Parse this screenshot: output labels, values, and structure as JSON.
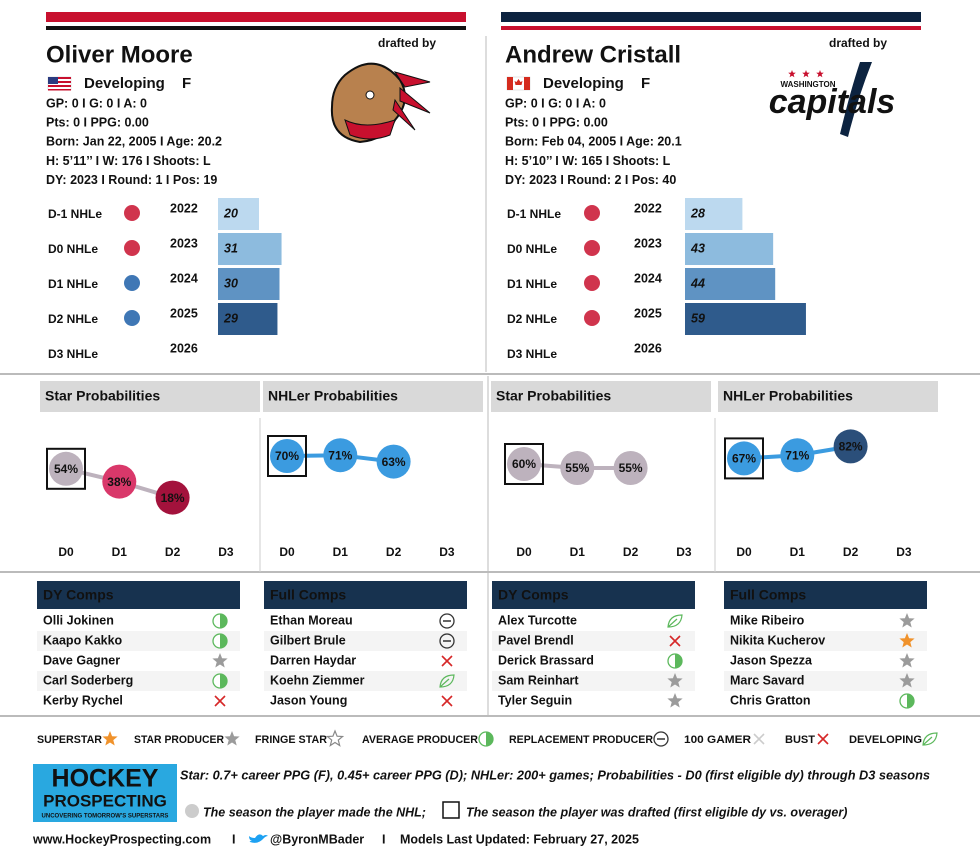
{
  "players": [
    {
      "name": "Oliver Moore",
      "drafted_by": "drafted by",
      "status": "Developing",
      "position": "F",
      "stats": [
        "GP: 0 I G: 0 I A: 0",
        "Pts: 0 I PPG: 0.00",
        "Born: Jan 22, 2005 I Age: 20.2",
        "H: 5’11’’ I W: 176 I Shoots: L",
        "DY: 2023 I Round: 1 I Pos: 19"
      ],
      "nhle": {
        "labels": [
          "D-1 NHLe",
          "D0 NHLe",
          "D1 NHLe",
          "D2 NHLe",
          "D3 NHLe"
        ],
        "years": [
          2022,
          2023,
          2024,
          2025,
          2026
        ],
        "values": [
          20,
          31,
          30,
          29,
          null
        ],
        "colors": [
          "#bcd9ef",
          "#8dbbde",
          "#5f93c3",
          "#2f5b8c",
          null
        ]
      },
      "star_probabilities": {
        "title": "Star Probabilities",
        "categories": [
          "D0",
          "D1",
          "D2",
          "D3"
        ],
        "values": [
          54,
          38,
          18,
          null
        ],
        "value_labels": [
          "54%",
          "38%",
          "18%",
          null
        ],
        "colors": [
          "#bdb2bd",
          "#d9386a",
          "#a3123c",
          null
        ],
        "drafted": "D0"
      },
      "nhler_probabilities": {
        "title": "NHLer Probabilities",
        "categories": [
          "D0",
          "D1",
          "D2",
          "D3"
        ],
        "values": [
          70,
          71,
          63,
          null
        ],
        "value_labels": [
          "70%",
          "71%",
          "63%",
          null
        ],
        "colors": [
          "#3b9be0",
          "#3b9be0",
          "#3b9be0",
          null
        ],
        "drafted": "D0"
      },
      "dy_comps": {
        "title": "DY Comps",
        "rows": [
          {
            "name": "Olli Jokinen",
            "tier": "AVERAGE PRODUCER"
          },
          {
            "name": "Kaapo Kakko",
            "tier": "AVERAGE PRODUCER"
          },
          {
            "name": "Dave Gagner",
            "tier": "STAR PRODUCER"
          },
          {
            "name": "Carl Soderberg",
            "tier": "AVERAGE PRODUCER"
          },
          {
            "name": "Kerby Rychel",
            "tier": "BUST"
          }
        ]
      },
      "full_comps": {
        "title": "Full Comps",
        "rows": [
          {
            "name": "Ethan Moreau",
            "tier": "REPLACEMENT PRODUCER"
          },
          {
            "name": "Gilbert Brule",
            "tier": "REPLACEMENT PRODUCER"
          },
          {
            "name": "Darren Haydar",
            "tier": "BUST"
          },
          {
            "name": "Koehn Ziemmer",
            "tier": "DEVELOPING"
          },
          {
            "name": "Jason Young",
            "tier": "BUST"
          }
        ]
      }
    },
    {
      "name": "Andrew Cristall",
      "drafted_by": "drafted by",
      "status": "Developing",
      "position": "F",
      "stats": [
        "GP: 0 I G: 0 I A: 0",
        "Pts: 0 I PPG: 0.00",
        "Born: Feb 04, 2005 I Age: 20.1",
        "H: 5’10’’ I W: 165 I Shoots: L",
        "DY: 2023 I Round: 2 I Pos: 40"
      ],
      "logo_text": [
        "WASHINGTON",
        "capitals"
      ],
      "nhle": {
        "labels": [
          "D-1 NHLe",
          "D0 NHLe",
          "D1 NHLe",
          "D2 NHLe",
          "D3 NHLe"
        ],
        "years": [
          2022,
          2023,
          2024,
          2025,
          2026
        ],
        "values": [
          28,
          43,
          44,
          59,
          null
        ],
        "colors": [
          "#bcd9ef",
          "#8dbbde",
          "#5f93c3",
          "#2f5b8c",
          null
        ]
      },
      "star_probabilities": {
        "title": "Star Probabilities",
        "categories": [
          "D0",
          "D1",
          "D2",
          "D3"
        ],
        "values": [
          60,
          55,
          55,
          null
        ],
        "value_labels": [
          "60%",
          "55%",
          "55%",
          null
        ],
        "colors": [
          "#bdb2bd",
          "#bdb2bd",
          "#bdb2bd",
          null
        ],
        "drafted": "D0"
      },
      "nhler_probabilities": {
        "title": "NHLer Probabilities",
        "categories": [
          "D0",
          "D1",
          "D2",
          "D3"
        ],
        "values": [
          67,
          71,
          82,
          null
        ],
        "value_labels": [
          "67%",
          "71%",
          "82%",
          null
        ],
        "colors": [
          "#3b9be0",
          "#3b9be0",
          "#2b4f7a",
          null
        ],
        "drafted": "D0"
      },
      "dy_comps": {
        "title": "DY Comps",
        "rows": [
          {
            "name": "Alex Turcotte",
            "tier": "DEVELOPING"
          },
          {
            "name": "Pavel Brendl",
            "tier": "BUST"
          },
          {
            "name": "Derick Brassard",
            "tier": "AVERAGE PRODUCER"
          },
          {
            "name": "Sam Reinhart",
            "tier": "STAR PRODUCER"
          },
          {
            "name": "Tyler Seguin",
            "tier": "STAR PRODUCER"
          }
        ]
      },
      "full_comps": {
        "title": "Full Comps",
        "rows": [
          {
            "name": "Mike Ribeiro",
            "tier": "STAR PRODUCER"
          },
          {
            "name": "Nikita Kucherov",
            "tier": "SUPERSTAR"
          },
          {
            "name": "Jason Spezza",
            "tier": "STAR PRODUCER"
          },
          {
            "name": "Marc Savard",
            "tier": "STAR PRODUCER"
          },
          {
            "name": "Chris Gratton",
            "tier": "AVERAGE PRODUCER"
          }
        ]
      }
    }
  ],
  "legend": [
    "SUPERSTAR",
    "STAR PRODUCER",
    "FRINGE STAR",
    "AVERAGE PRODUCER",
    "REPLACEMENT PRODUCER",
    "100 GAMER",
    "BUST",
    "DEVELOPING"
  ],
  "footer": {
    "logo": [
      "HOCKEY",
      "PROSPECTING",
      "UNCOVERING TOMORROW'S SUPERSTARS"
    ],
    "note_1": "Star: 0.7+ career PPG (F), 0.45+ career PPG (D); NHLer: 200+ games; Probabilities - D0 (first eligible dy) through D3 seasons",
    "note_2": "The season the player made the NHL;",
    "note_3": "The season the player was drafted (first eligible dy vs. overager)",
    "links": [
      "www.HockeyProspecting.com",
      "I",
      "@ByronMBader",
      "I",
      "Models Last Updated: February 27, 2025"
    ]
  }
}
